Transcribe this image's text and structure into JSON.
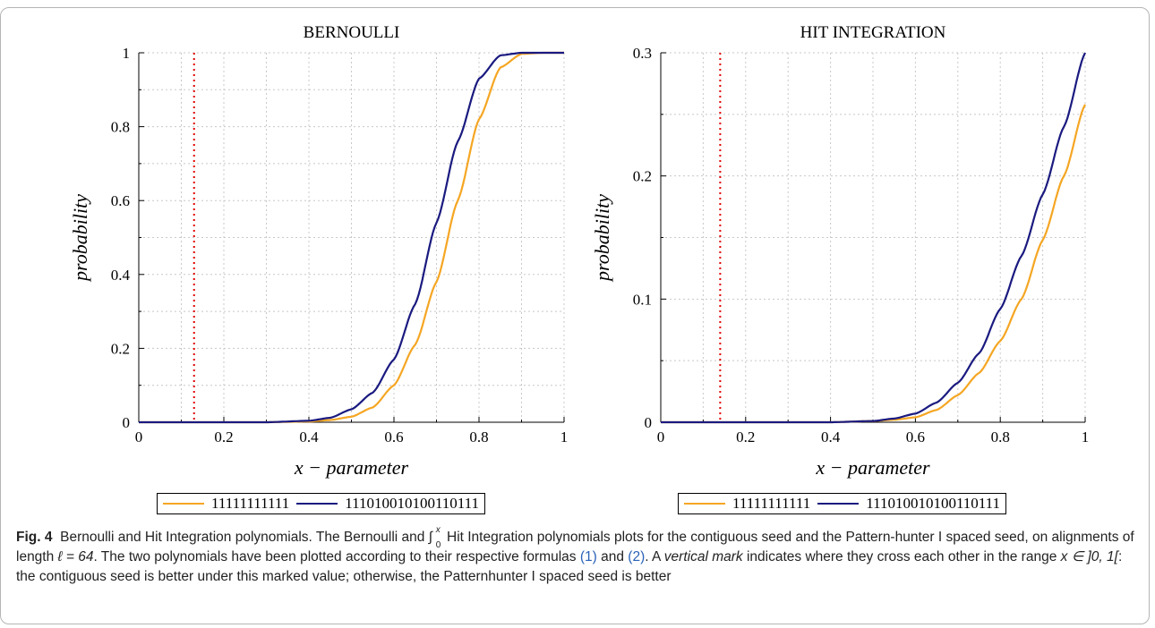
{
  "colors": {
    "series1": "#F5A623",
    "series2": "#1a1a80",
    "vline": "#e00000",
    "grid": "#c8c8c8"
  },
  "chart_data": [
    {
      "type": "line",
      "title": "BERNOULLI",
      "xlabel": "x − parameter",
      "ylabel": "probability",
      "xlim": [
        0,
        1
      ],
      "ylim": [
        0,
        1
      ],
      "xticks": [
        "0",
        "0.2",
        "0.4",
        "0.6",
        "0.8",
        "1"
      ],
      "yticks": [
        "0",
        "0.2",
        "0.4",
        "0.6",
        "0.8",
        "1"
      ],
      "grid": true,
      "legend_position": "bottom",
      "vertical_mark_x": 0.13,
      "x": [
        0,
        0.3,
        0.4,
        0.45,
        0.5,
        0.55,
        0.6,
        0.65,
        0.7,
        0.75,
        0.8,
        0.85,
        0.9,
        0.95,
        1
      ],
      "series": [
        {
          "name": "11111111111",
          "values": [
            0,
            0,
            0.002,
            0.006,
            0.015,
            0.04,
            0.1,
            0.21,
            0.38,
            0.6,
            0.82,
            0.96,
            0.997,
            1,
            1
          ]
        },
        {
          "name": "111010010100110111",
          "values": [
            0,
            0,
            0.004,
            0.012,
            0.035,
            0.08,
            0.17,
            0.32,
            0.54,
            0.76,
            0.93,
            0.993,
            1,
            1,
            1
          ]
        }
      ]
    },
    {
      "type": "line",
      "title": "HIT INTEGRATION",
      "xlabel": "x − parameter",
      "ylabel": "probability",
      "xlim": [
        0,
        1
      ],
      "ylim": [
        0,
        0.3
      ],
      "xticks": [
        "0",
        "0.2",
        "0.4",
        "0.6",
        "0.8",
        "1"
      ],
      "yticks": [
        "0",
        "0.1",
        "0.2",
        "0.3"
      ],
      "grid": true,
      "legend_position": "bottom",
      "vertical_mark_x": 0.14,
      "x": [
        0,
        0.4,
        0.5,
        0.55,
        0.6,
        0.65,
        0.7,
        0.75,
        0.8,
        0.85,
        0.9,
        0.95,
        1
      ],
      "series": [
        {
          "name": "11111111111",
          "values": [
            0,
            0,
            0.001,
            0.002,
            0.004,
            0.01,
            0.022,
            0.04,
            0.066,
            0.1,
            0.148,
            0.2,
            0.258
          ]
        },
        {
          "name": "111010010100110111",
          "values": [
            0,
            0,
            0.001,
            0.003,
            0.007,
            0.016,
            0.032,
            0.056,
            0.092,
            0.135,
            0.185,
            0.24,
            0.3
          ]
        }
      ]
    }
  ],
  "caption": {
    "fig_label": "Fig. 4",
    "part1": "Bernoulli and Hit Integration polynomials. The Bernoulli and ",
    "integral": "∫",
    "integral_upper": "x",
    "integral_lower": "0",
    "part2": " Hit Integration polynomials plots for the contiguous seed and the Pattern-hunter I spaced seed, on alignments of length ",
    "ell_expr": "ℓ = 64",
    "part3": ". The two polynomials have been plotted according to their respective formulas ",
    "ref1": "(1)",
    "and": " and ",
    "ref2": "(2)",
    "part4": ". A ",
    "emph": "vertical mark",
    "part5": " indicates where they cross each other in the range ",
    "range_expr": "x ∈ ]0, 1[",
    "part6": ": the contiguous seed is better under this marked value; otherwise, the Patternhunter I spaced seed is better"
  }
}
